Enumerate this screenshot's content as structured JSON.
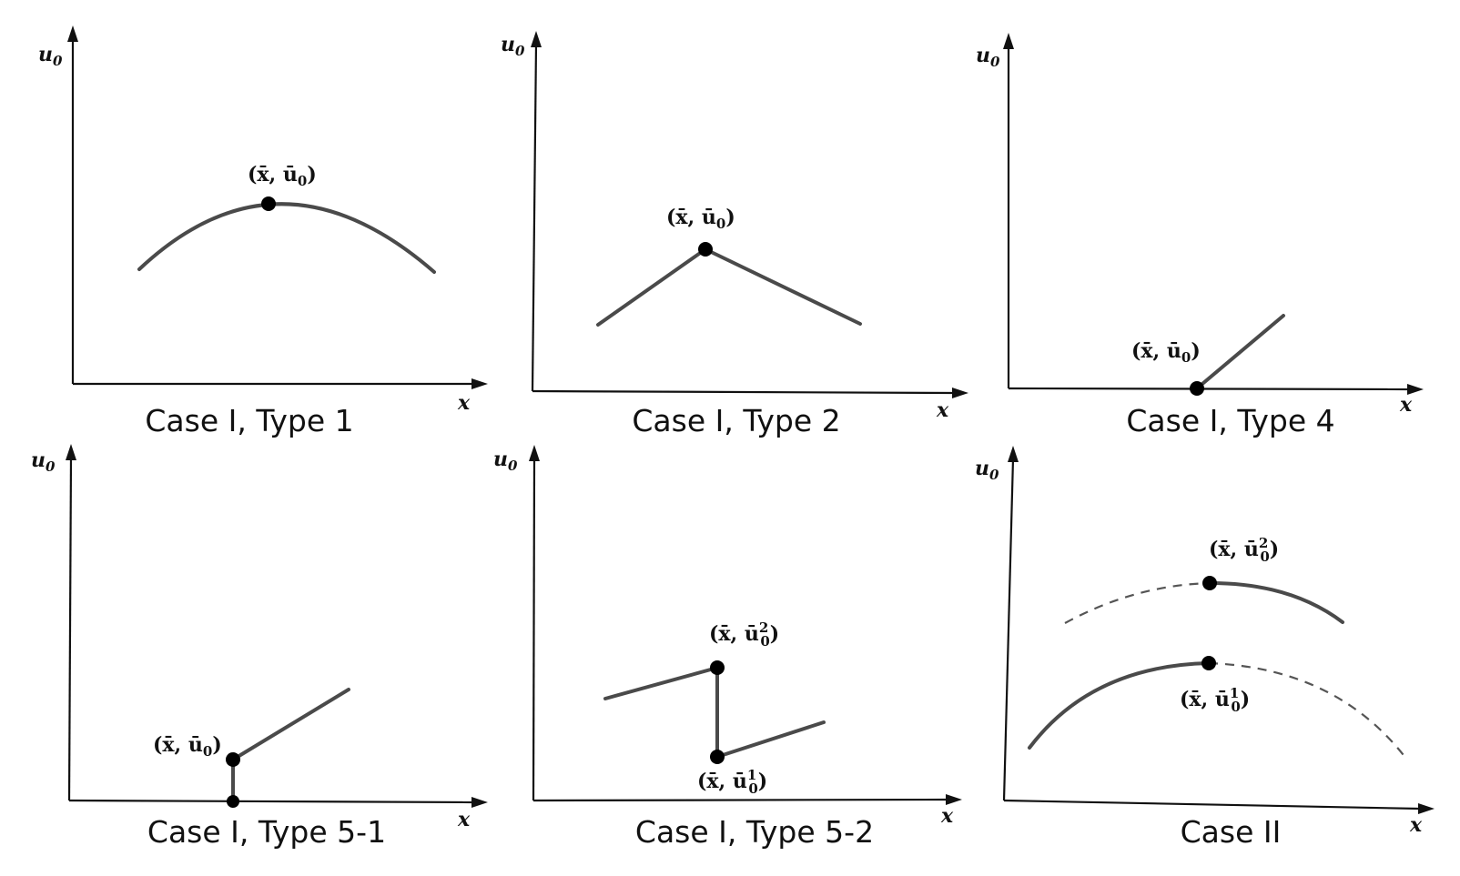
{
  "axes": {
    "x_label": "x",
    "y_label": "u",
    "y_label_sub": "0"
  },
  "point_labels": {
    "single": {
      "open": "(",
      "x": "x̄",
      "sep": ", ",
      "u": "ū",
      "sub": "0",
      "sup": "",
      "close": ")"
    },
    "upper": {
      "open": "(",
      "x": "x̄",
      "sep": ", ",
      "u": "ū",
      "sub": "0",
      "sup": "2",
      "close": ")"
    },
    "lower": {
      "open": "(",
      "x": "x̄",
      "sep": ", ",
      "u": "ū",
      "sub": "0",
      "sup": "1",
      "close": ")"
    }
  },
  "panels": [
    {
      "caption": "Case I, Type 1"
    },
    {
      "caption": "Case I, Type 2"
    },
    {
      "caption": "Case I, Type 4"
    },
    {
      "caption": "Case I, Type 5-1"
    },
    {
      "caption": "Case I, Type 5-2"
    },
    {
      "caption": "Case II"
    }
  ]
}
